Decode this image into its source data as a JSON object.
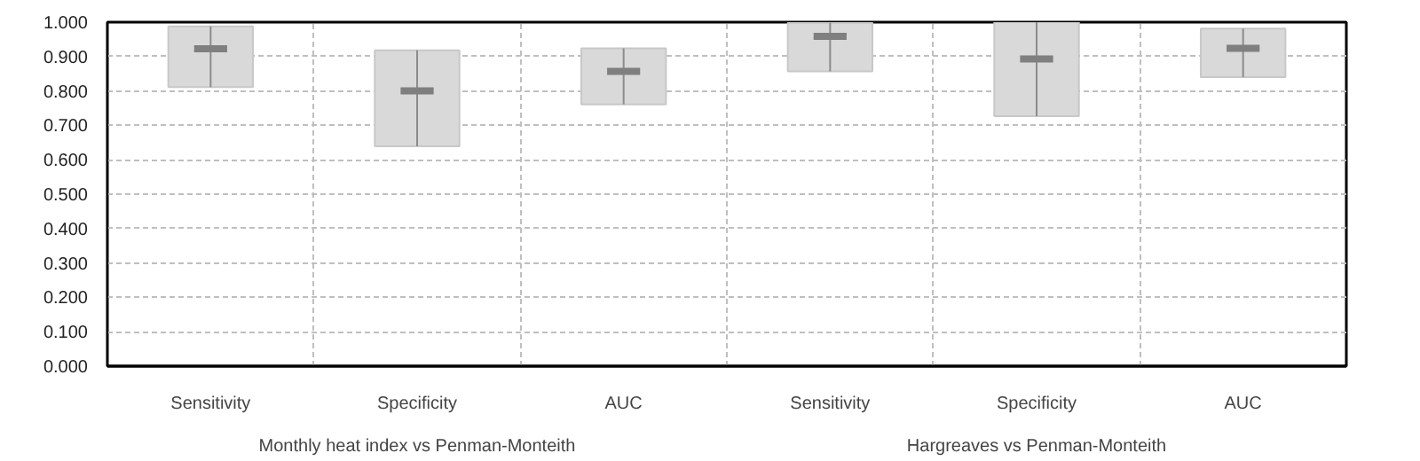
{
  "chart_data": {
    "type": "box",
    "categories": [
      "Sensitivity",
      "Specificity",
      "AUC",
      "Sensitivity",
      "Specificity",
      "AUC"
    ],
    "color": "#d9d9d9",
    "boxes": [
      {
        "low": 0.811,
        "q1": 0.811,
        "median": 0.923,
        "q3": 0.988,
        "high": 0.988
      },
      {
        "low": 0.639,
        "q1": 0.639,
        "median": 0.8,
        "q3": 0.918,
        "high": 0.918
      },
      {
        "low": 0.761,
        "q1": 0.761,
        "median": 0.857,
        "q3": 0.924,
        "high": 0.924
      },
      {
        "low": 0.857,
        "q1": 0.857,
        "median": 0.959,
        "q3": 0.998,
        "high": 0.998
      },
      {
        "low": 0.727,
        "q1": 0.727,
        "median": 0.893,
        "q3": 1.0,
        "high": 1.0
      },
      {
        "low": 0.84,
        "q1": 0.84,
        "median": 0.924,
        "q3": 0.981,
        "high": 0.981
      }
    ],
    "annotations": [
      "Monthly heat index vs Penman-Monteith",
      "Hargreaves vs Penman-Monteith"
    ],
    "ylim": [
      0,
      1
    ],
    "yticks": [
      {
        "value": 0,
        "label": "0.000"
      },
      {
        "value": 0.1,
        "label": "0.100"
      },
      {
        "value": 0.2,
        "label": "0.200"
      },
      {
        "value": 0.3,
        "label": "0.300"
      },
      {
        "value": 0.4,
        "label": "0.400"
      },
      {
        "value": 0.5,
        "label": "0.500"
      },
      {
        "value": 0.6,
        "label": "0.600"
      },
      {
        "value": 0.7,
        "label": "0.700"
      },
      {
        "value": 0.8,
        "label": "0.800"
      },
      {
        "value": 0.9,
        "label": "0.900"
      },
      {
        "value": 1,
        "label": "1.000"
      }
    ],
    "grid": true
  }
}
